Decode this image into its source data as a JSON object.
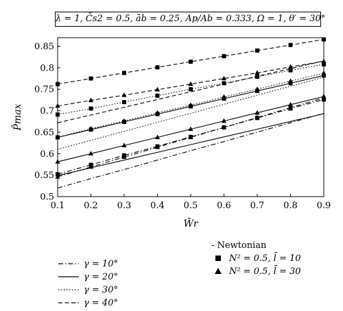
{
  "chart_data": {
    "type": "line",
    "parameter_text": "λ = 1, C̄s2 = 0.5, āb = 0.25, Ap/Ab = 0.333, Ω = 1, θ′ = 30°",
    "xlabel": "W̄r",
    "ylabel": "P̄max",
    "xlim": [
      0.1,
      0.9
    ],
    "ylim": [
      0.5,
      0.87
    ],
    "x_ticks": [
      "0.1",
      "0.2",
      "0.3",
      "0.4",
      "0.5",
      "0.6",
      "0.7",
      "0.8",
      "0.9"
    ],
    "y_ticks": [
      "0.5",
      "0.55",
      "0.6",
      "0.65",
      "0.7",
      "0.75",
      "0.8",
      "0.85"
    ],
    "grid": false,
    "x": [
      0.1,
      0.2,
      0.3,
      0.4,
      0.5,
      0.6,
      0.7,
      0.8,
      0.9
    ],
    "series": [
      {
        "name": "γ = 10°",
        "style": "dashdot",
        "model": "Newtonian",
        "values": [
          0.52,
          0.542,
          0.563,
          0.585,
          0.607,
          0.628,
          0.65,
          0.672,
          0.694
        ]
      },
      {
        "name": "γ = 10°",
        "style": "dashdot",
        "model": "N² = 0.5, l̄ = 10",
        "marker": "square",
        "values": [
          0.552,
          0.574,
          0.596,
          0.617,
          0.639,
          0.661,
          0.683,
          0.705,
          0.726
        ]
      },
      {
        "name": "γ = 10°",
        "style": "dashdot",
        "model": "N² = 0.5, l̄ = 30",
        "marker": "triangle",
        "values": [
          0.546,
          0.569,
          0.592,
          0.615,
          0.638,
          0.661,
          0.684,
          0.707,
          0.73
        ]
      },
      {
        "name": "γ = 20°",
        "style": "solid",
        "model": "Newtonian",
        "values": [
          0.549,
          0.567,
          0.585,
          0.603,
          0.621,
          0.639,
          0.657,
          0.675,
          0.693
        ]
      },
      {
        "name": "γ = 20°",
        "style": "solid",
        "model": "N² = 0.5, l̄ = 10",
        "marker": "square",
        "values": [
          0.638,
          0.656,
          0.674,
          0.692,
          0.71,
          0.728,
          0.746,
          0.764,
          0.782
        ]
      },
      {
        "name": "γ = 20°",
        "style": "solid",
        "model": "N² = 0.5, l̄ = 30",
        "marker": "triangle",
        "values": [
          0.581,
          0.6,
          0.619,
          0.638,
          0.657,
          0.676,
          0.695,
          0.714,
          0.733
        ]
      },
      {
        "name": "γ = 30°",
        "style": "dotted",
        "model": "Newtonian",
        "values": [
          0.61,
          0.631,
          0.652,
          0.673,
          0.694,
          0.715,
          0.736,
          0.757,
          0.778
        ]
      },
      {
        "name": "γ = 30°",
        "style": "dotted",
        "model": "N² = 0.5, l̄ = 10",
        "marker": "square",
        "values": [
          0.691,
          0.705,
          0.72,
          0.735,
          0.75,
          0.764,
          0.779,
          0.794,
          0.808
        ]
      },
      {
        "name": "γ = 30°",
        "style": "dotted",
        "model": "N² = 0.5, l̄ = 30",
        "marker": "triangle",
        "values": [
          0.638,
          0.658,
          0.676,
          0.695,
          0.713,
          0.732,
          0.75,
          0.769,
          0.787
        ]
      },
      {
        "name": "γ = 40°",
        "style": "dashed",
        "model": "Newtonian",
        "values": [
          0.672,
          0.69,
          0.708,
          0.726,
          0.744,
          0.762,
          0.78,
          0.798,
          0.816
        ]
      },
      {
        "name": "γ = 40°",
        "style": "dashed",
        "model": "N² = 0.5, l̄ = 10",
        "marker": "square",
        "values": [
          0.762,
          0.775,
          0.788,
          0.801,
          0.814,
          0.827,
          0.84,
          0.853,
          0.866
        ]
      },
      {
        "name": "γ = 40°",
        "style": "dashed",
        "model": "N² = 0.5, l̄ = 30",
        "marker": "triangle",
        "values": [
          0.711,
          0.724,
          0.736,
          0.749,
          0.762,
          0.775,
          0.788,
          0.802,
          0.815
        ]
      }
    ],
    "legend": {
      "line_styles": [
        {
          "label": "γ = 10°",
          "style": "dashdot"
        },
        {
          "label": "γ = 20°",
          "style": "solid"
        },
        {
          "label": "γ = 30°",
          "style": "dotted"
        },
        {
          "label": "γ = 40°",
          "style": "dashed"
        }
      ],
      "models": [
        {
          "label": "- Newtonian",
          "marker": "none"
        },
        {
          "label": "N² = 0.5, l̄ = 10",
          "marker": "square"
        },
        {
          "label": "N² = 0.5, l̄ = 30",
          "marker": "triangle"
        }
      ]
    }
  }
}
